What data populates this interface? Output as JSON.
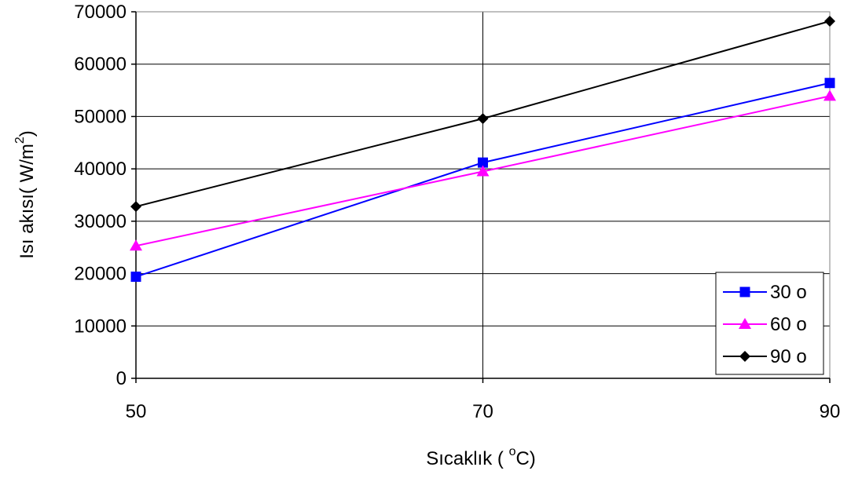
{
  "chart_data": {
    "type": "line",
    "title": "",
    "x": [
      50,
      70,
      90
    ],
    "x_tick_labels": [
      "50",
      "70",
      "90"
    ],
    "xlim": [
      50,
      90
    ],
    "ylim": [
      0,
      70000
    ],
    "y_ticks": [
      0,
      10000,
      20000,
      30000,
      40000,
      50000,
      60000,
      70000
    ],
    "y_tick_labels": [
      "0",
      "10000",
      "20000",
      "30000",
      "40000",
      "50000",
      "60000",
      "70000"
    ],
    "xlabel": {
      "prefix": "Sıcaklık ( ",
      "sup": "o",
      "suffix": "C)"
    },
    "ylabel": {
      "prefix": "Isı akısı( W/m",
      "sup": "2",
      "suffix": ")"
    },
    "grid": true,
    "legend_position": "bottom-right",
    "series": [
      {
        "name": "30 o",
        "values": [
          19400,
          41200,
          56400
        ],
        "color": "#0000ff",
        "marker": "square"
      },
      {
        "name": "60 o",
        "values": [
          25300,
          39500,
          53900
        ],
        "color": "#ff00ff",
        "marker": "triangle"
      },
      {
        "name": "90 o",
        "values": [
          32800,
          49600,
          68200
        ],
        "color": "#000000",
        "marker": "diamond"
      }
    ]
  }
}
